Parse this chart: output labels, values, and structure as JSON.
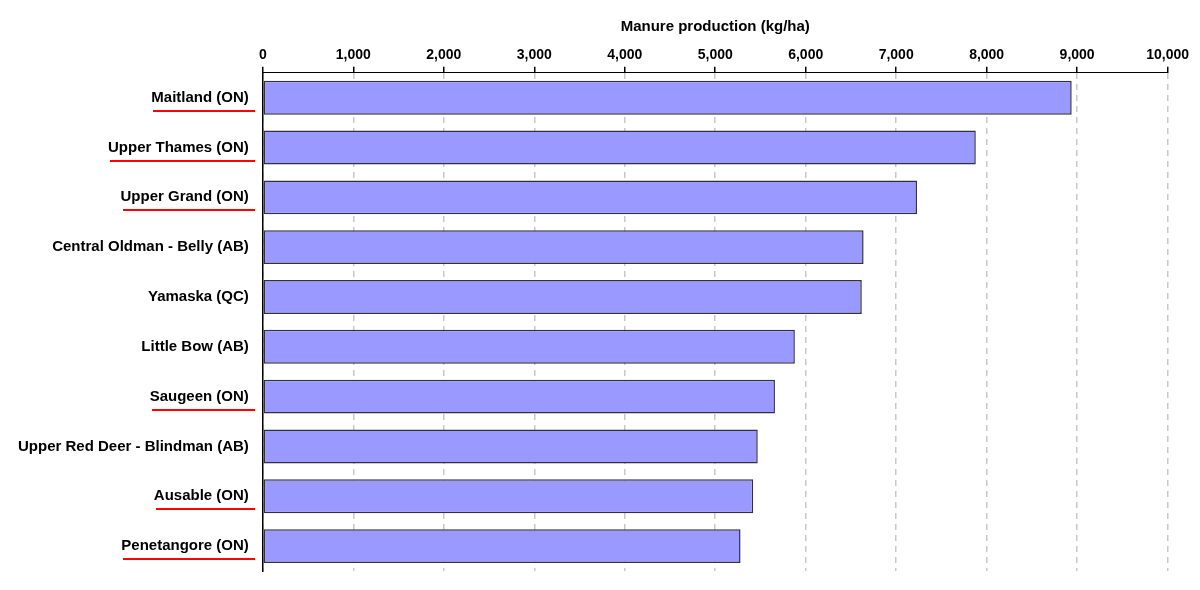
{
  "chart_data": {
    "type": "bar",
    "orientation": "horizontal",
    "xlabel": "Manure production (kg/ha)",
    "categories": [
      "Maitland (ON)",
      "Upper Thames (ON)",
      "Upper Grand (ON)",
      "Central Oldman - Belly (AB)",
      "Yamaska (QC)",
      "Little Bow (AB)",
      "Saugeen (ON)",
      "Upper Red Deer - Blindman (AB)",
      "Ausable (ON)",
      "Penetangore (ON)"
    ],
    "values": [
      8940,
      7880,
      7230,
      6640,
      6620,
      5880,
      5660,
      5470,
      5420,
      5280
    ],
    "color": "#9999ff",
    "xlim": [
      0,
      10000
    ],
    "xticks": [
      {
        "value": 0,
        "label": "0"
      },
      {
        "value": 1000,
        "label": "1,000"
      },
      {
        "value": 2000,
        "label": "2,000"
      },
      {
        "value": 3000,
        "label": "3,000"
      },
      {
        "value": 4000,
        "label": "4,000"
      },
      {
        "value": 5000,
        "label": "5,000"
      },
      {
        "value": 6000,
        "label": "6,000"
      },
      {
        "value": 7000,
        "label": "7,000"
      },
      {
        "value": 8000,
        "label": "8,000"
      },
      {
        "value": 9000,
        "label": "9,000"
      },
      {
        "value": 10000,
        "label": "10,000"
      }
    ],
    "grid": "x",
    "legend": false
  }
}
